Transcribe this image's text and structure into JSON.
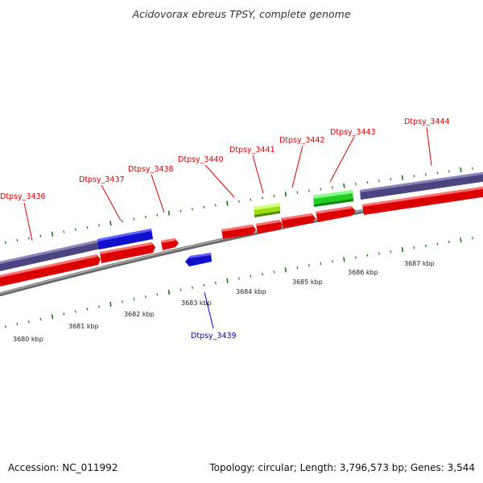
{
  "title": "Acidovorax ebreus TPSY, complete genome",
  "footer": {
    "accession": "Accession: NC_011992",
    "summary": "Topology: circular; Length: 3,796,573 bp; Genes: 3,544"
  },
  "colors": {
    "cds_forward": "#ee1111",
    "cds_reverse": "#1111dd",
    "cds_highlight_yellow": "#b8f020",
    "cds_highlight_green": "#33cc33",
    "gene_bar": "#55508a",
    "backbone": "#8c8c8c",
    "tick": "#1a7a1a",
    "label_red": "#dd0000",
    "label_blue": "#0000cc"
  },
  "scale_labels": [
    "3680 kbp",
    "3681 kbp",
    "3682 kbp",
    "3683 kbp",
    "3684 kbp",
    "3685 kbp",
    "3686 kbp",
    "3687 kbp"
  ],
  "gene_labels": [
    {
      "name": "Dtpsy_3436",
      "strand": "forward"
    },
    {
      "name": "Dtpsy_3437",
      "strand": "forward"
    },
    {
      "name": "Dtpsy_3438",
      "strand": "forward"
    },
    {
      "name": "Dtpsy_3439",
      "strand": "reverse"
    },
    {
      "name": "Dtpsy_3440",
      "strand": "forward"
    },
    {
      "name": "Dtpsy_3441",
      "strand": "forward"
    },
    {
      "name": "Dtpsy_3442",
      "strand": "forward"
    },
    {
      "name": "Dtpsy_3443",
      "strand": "forward"
    },
    {
      "name": "Dtpsy_3444",
      "strand": "forward"
    }
  ]
}
